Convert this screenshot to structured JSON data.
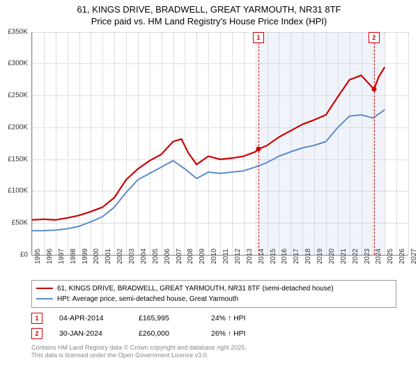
{
  "title": {
    "line1": "61, KINGS DRIVE, BRADWELL, GREAT YARMOUTH, NR31 8TF",
    "line2": "Price paid vs. HM Land Registry's House Price Index (HPI)",
    "fontsize": 13
  },
  "chart": {
    "type": "line",
    "background_color": "#ffffff",
    "grid_color": "#bfbfbf",
    "shade_color": "#e8eef7",
    "xlim": [
      1995,
      2027
    ],
    "ylim": [
      0,
      350000
    ],
    "ytick_step": 50000,
    "yticks": [
      "£0",
      "£50K",
      "£100K",
      "£150K",
      "£200K",
      "£250K",
      "£300K",
      "£350K"
    ],
    "xticks": [
      1995,
      1996,
      1997,
      1998,
      1999,
      2000,
      2001,
      2002,
      2003,
      2004,
      2005,
      2006,
      2007,
      2008,
      2009,
      2010,
      2011,
      2012,
      2013,
      2014,
      2015,
      2016,
      2017,
      2018,
      2019,
      2020,
      2021,
      2022,
      2023,
      2024,
      2025,
      2026,
      2027
    ],
    "shade_start": 2014.25,
    "shade_end": 2025.0,
    "sale_dashes": [
      2014.25,
      2024.08
    ],
    "series": [
      {
        "name": "price_paid",
        "color": "#cc0000",
        "width": 2.2,
        "points": [
          [
            1995,
            55000
          ],
          [
            1996,
            56000
          ],
          [
            1997,
            55000
          ],
          [
            1998,
            58000
          ],
          [
            1999,
            62000
          ],
          [
            2000,
            68000
          ],
          [
            2001,
            75000
          ],
          [
            2002,
            90000
          ],
          [
            2003,
            118000
          ],
          [
            2004,
            135000
          ],
          [
            2005,
            148000
          ],
          [
            2006,
            158000
          ],
          [
            2007,
            178000
          ],
          [
            2007.7,
            182000
          ],
          [
            2008.3,
            160000
          ],
          [
            2009,
            142000
          ],
          [
            2010,
            155000
          ],
          [
            2011,
            150000
          ],
          [
            2012,
            152000
          ],
          [
            2013,
            155000
          ],
          [
            2014,
            162000
          ],
          [
            2014.25,
            165995
          ],
          [
            2015,
            172000
          ],
          [
            2016,
            185000
          ],
          [
            2017,
            195000
          ],
          [
            2018,
            205000
          ],
          [
            2019,
            212000
          ],
          [
            2020,
            220000
          ],
          [
            2021,
            248000
          ],
          [
            2022,
            275000
          ],
          [
            2023,
            282000
          ],
          [
            2023.7,
            268000
          ],
          [
            2024.08,
            260000
          ],
          [
            2024.5,
            280000
          ],
          [
            2025,
            295000
          ]
        ]
      },
      {
        "name": "hpi",
        "color": "#5b8bc9",
        "width": 2.0,
        "points": [
          [
            1995,
            38000
          ],
          [
            1996,
            38000
          ],
          [
            1997,
            39000
          ],
          [
            1998,
            41000
          ],
          [
            1999,
            45000
          ],
          [
            2000,
            52000
          ],
          [
            2001,
            60000
          ],
          [
            2002,
            75000
          ],
          [
            2003,
            98000
          ],
          [
            2004,
            118000
          ],
          [
            2005,
            128000
          ],
          [
            2006,
            138000
          ],
          [
            2007,
            148000
          ],
          [
            2008,
            135000
          ],
          [
            2009,
            120000
          ],
          [
            2010,
            130000
          ],
          [
            2011,
            128000
          ],
          [
            2012,
            130000
          ],
          [
            2013,
            132000
          ],
          [
            2014,
            138000
          ],
          [
            2015,
            145000
          ],
          [
            2016,
            155000
          ],
          [
            2017,
            162000
          ],
          [
            2018,
            168000
          ],
          [
            2019,
            172000
          ],
          [
            2020,
            178000
          ],
          [
            2021,
            200000
          ],
          [
            2022,
            218000
          ],
          [
            2023,
            220000
          ],
          [
            2024,
            215000
          ],
          [
            2025,
            228000
          ]
        ]
      }
    ],
    "sale_points": [
      {
        "x": 2014.25,
        "y": 165995
      },
      {
        "x": 2024.08,
        "y": 260000
      }
    ]
  },
  "legend": {
    "items": [
      {
        "color": "#cc0000",
        "label": "61, KINGS DRIVE, BRADWELL, GREAT YARMOUTH, NR31 8TF (semi-detached house)"
      },
      {
        "color": "#5b8bc9",
        "label": "HPI: Average price, semi-detached house, Great Yarmouth"
      }
    ]
  },
  "sales": [
    {
      "n": "1",
      "date": "04-APR-2014",
      "price": "£165,995",
      "delta": "24% ↑ HPI"
    },
    {
      "n": "2",
      "date": "30-JAN-2024",
      "price": "£260,000",
      "delta": "26% ↑ HPI"
    }
  ],
  "footer": {
    "line1": "Contains HM Land Registry data © Crown copyright and database right 2025.",
    "line2": "This data is licensed under the Open Government Licence v3.0."
  }
}
